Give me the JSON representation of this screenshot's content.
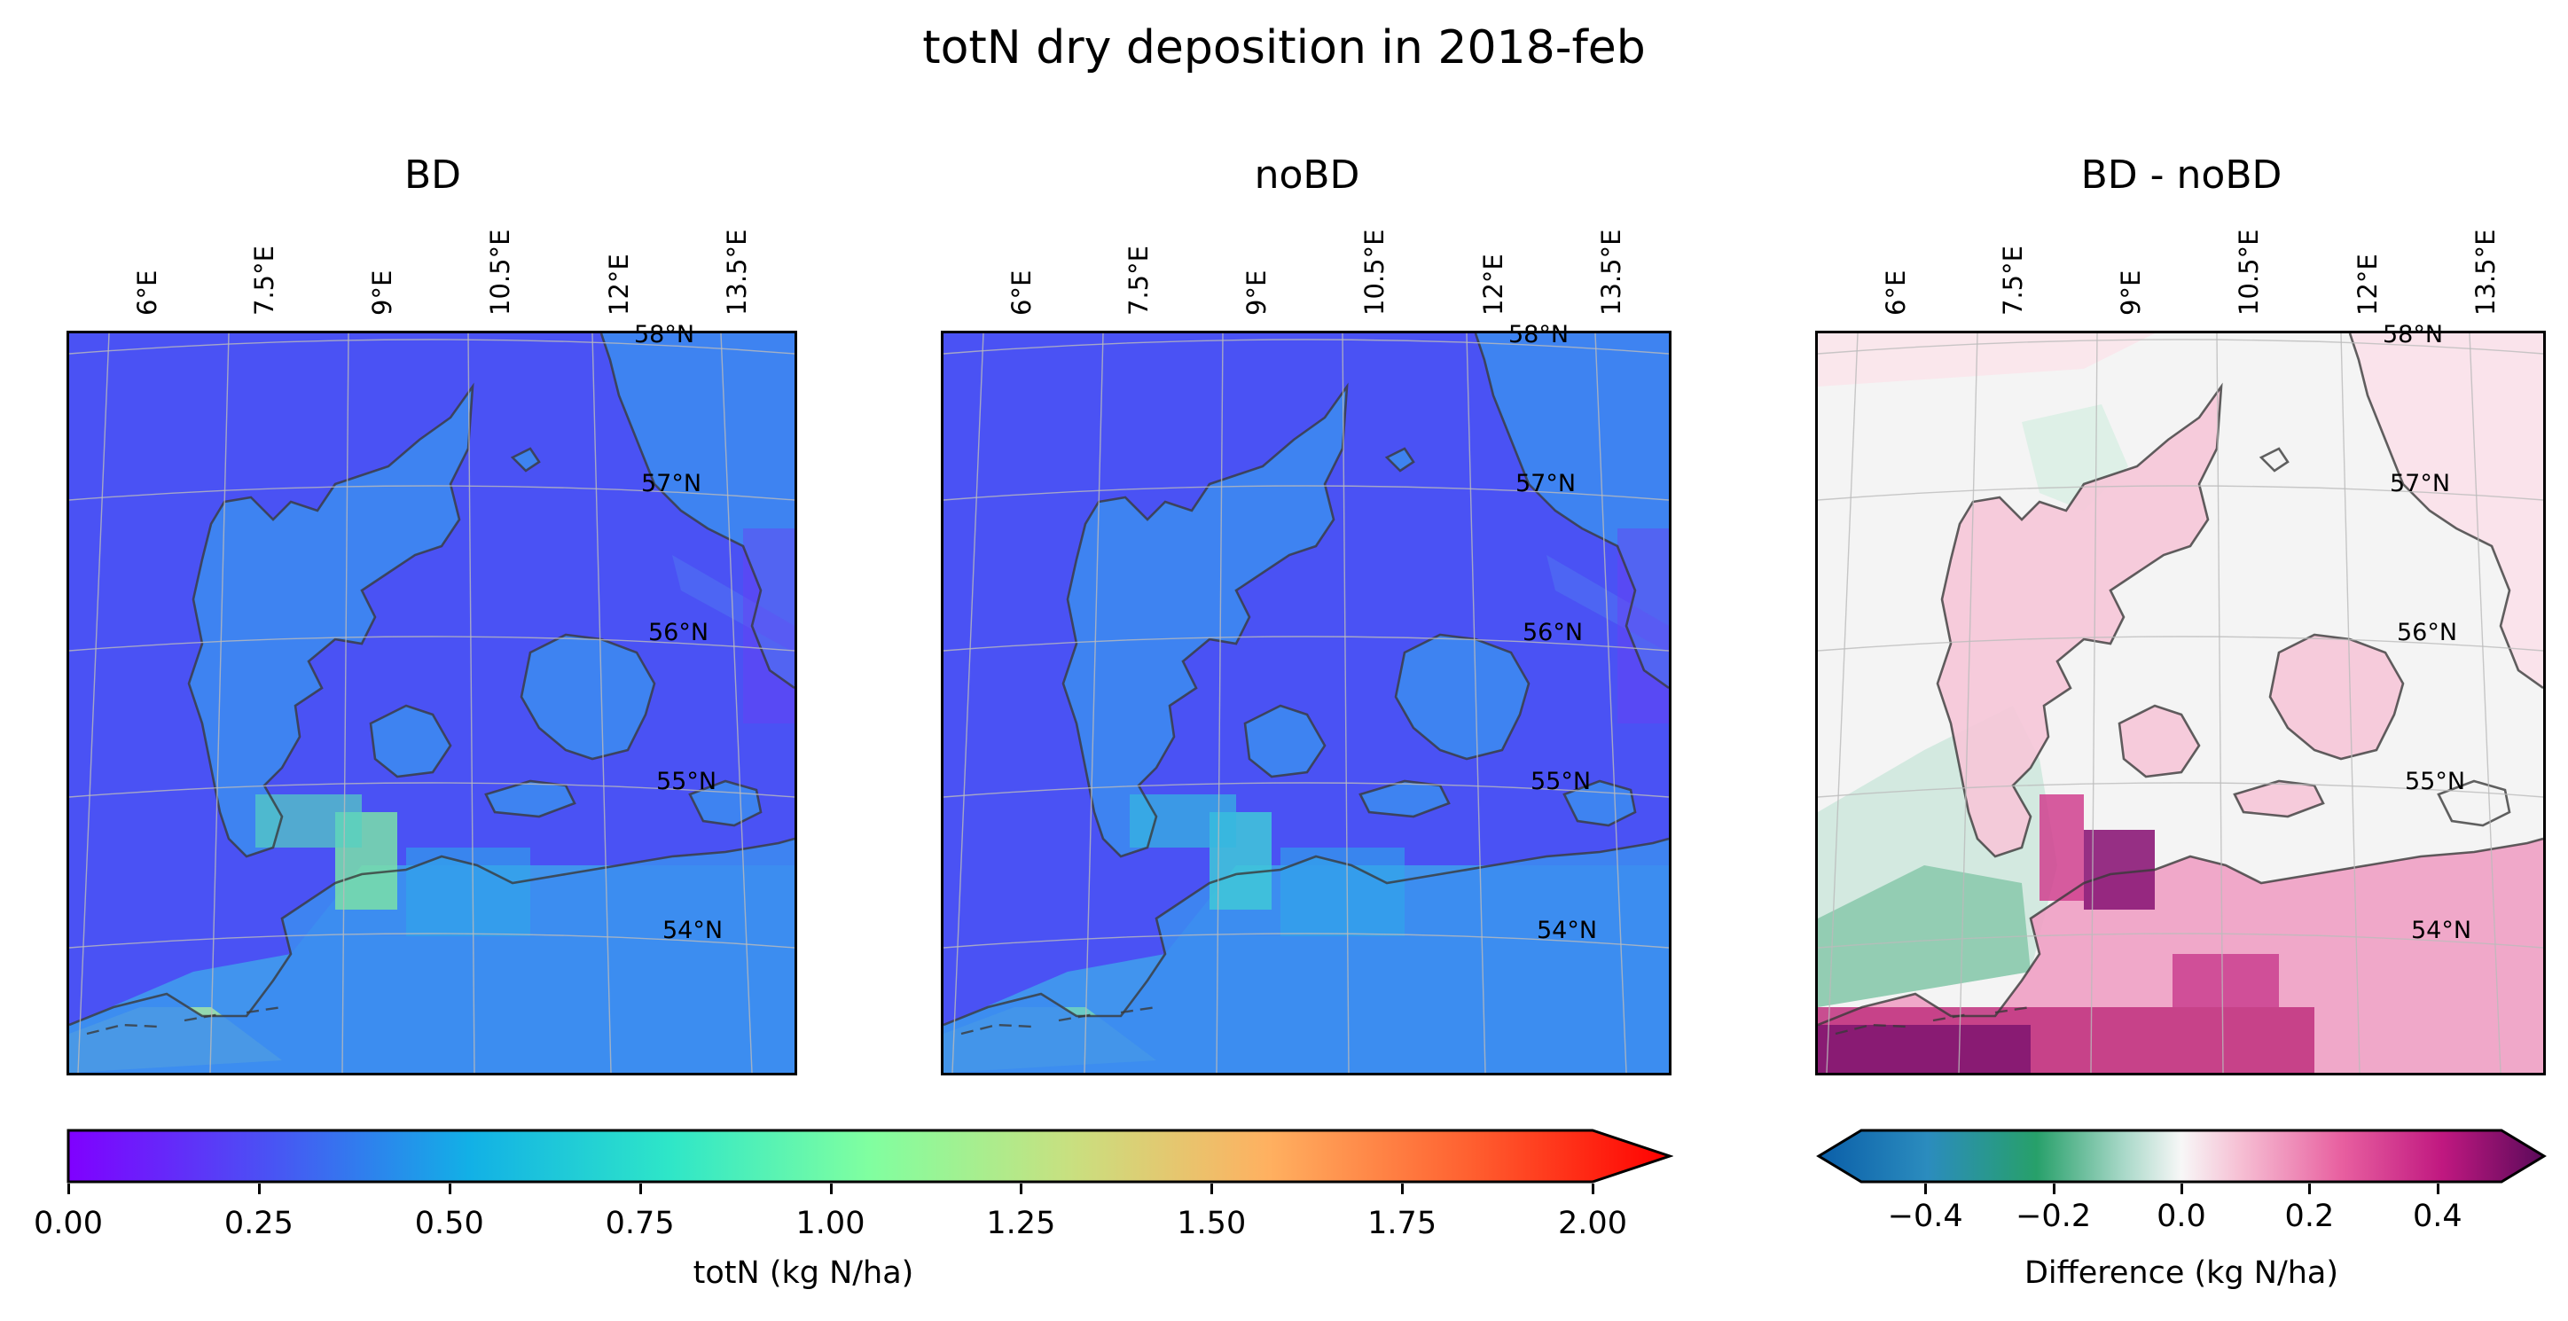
{
  "figure": {
    "title": "totN dry deposition in 2018-feb"
  },
  "panels": [
    {
      "title": "BD",
      "kind": "abs"
    },
    {
      "title": "noBD",
      "kind": "abs"
    },
    {
      "title": "BD - noBD",
      "kind": "diff"
    }
  ],
  "grid": {
    "lon_labels": [
      "6°E",
      "7.5°E",
      "9°E",
      "10.5°E",
      "12°E",
      "13.5°E"
    ],
    "lat_labels": [
      "58°N",
      "57°N",
      "56°N",
      "55°N",
      "54°N"
    ]
  },
  "colorbar_abs": {
    "label": "totN (kg N/ha)",
    "ticks": [
      "0.00",
      "0.25",
      "0.50",
      "0.75",
      "1.00",
      "1.25",
      "1.50",
      "1.75",
      "2.00"
    ],
    "range": [
      0,
      2
    ],
    "colormap": "rainbow",
    "extend": "max"
  },
  "colorbar_diff": {
    "label": "Difference (kg N/ha)",
    "ticks": [
      "−0.4",
      "−0.2",
      "0.0",
      "0.2",
      "0.4"
    ],
    "range": [
      -0.5,
      0.5
    ],
    "colormap": "PuRd-BuGn diverging",
    "extend": "both"
  },
  "colors": {
    "sea_abs": "#4a52f4",
    "land_abs": "#3c8cf0",
    "coast": "#3a3a3a",
    "diff_neutral": "#f4f4f4",
    "diff_pos": "#d6338b",
    "diff_neg": "#1a8a5a"
  }
}
